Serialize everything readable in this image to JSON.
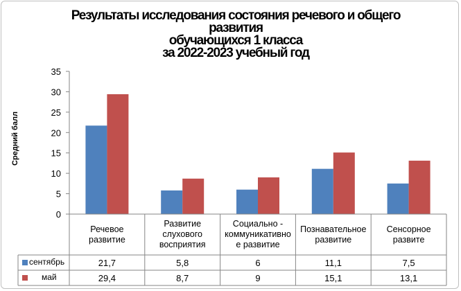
{
  "chart_data": {
    "type": "bar",
    "title_lines": [
      "Результаты исследования состояния речевого и общего",
      "развития",
      "обучающихся 1 класса",
      "за 2022-2023 учебный год"
    ],
    "ylabel": "Средний балл",
    "xlabel": "",
    "ylim": [
      0,
      35
    ],
    "yticks": [
      "0",
      "5",
      "10",
      "15",
      "20",
      "25",
      "30",
      "35"
    ],
    "grid": false,
    "legend": "data-table",
    "categories": [
      "Речевое развитие",
      "Развитие слухового восприятия",
      "Социально - коммуникативно е развитие",
      "Познавательное развитие",
      "Сенсорное развите"
    ],
    "series": [
      {
        "name": "сентябрь",
        "color": "#4f81bd",
        "values": [
          21.7,
          5.8,
          6,
          11.1,
          7.5
        ],
        "labels": [
          "21,7",
          "5,8",
          "6",
          "11,1",
          "7,5"
        ]
      },
      {
        "name": "май",
        "color": "#c0504d",
        "values": [
          29.4,
          8.7,
          9,
          15.1,
          13.1
        ],
        "labels": [
          "29,4",
          "8,7",
          "9",
          "15,1",
          "13,1"
        ]
      }
    ]
  }
}
